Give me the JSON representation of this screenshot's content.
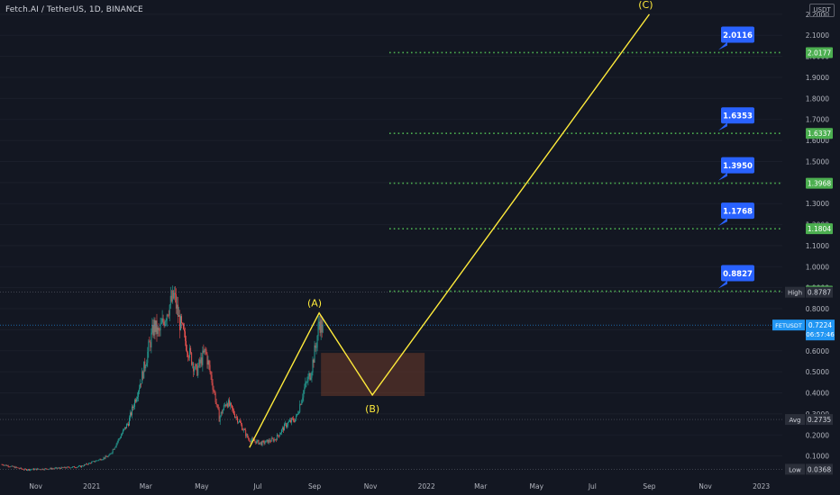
{
  "header": {
    "title": "Fetch.AI / TetherUS, 1D, BINANCE",
    "currency_label": "USDT"
  },
  "colors": {
    "background": "#131722",
    "up_candle": "#26a69a",
    "down_candle": "#ef5350",
    "wave_line": "#ffeb3b",
    "target_line": "#4caf50",
    "target_callout": "#2962ff",
    "price_label": "#2196f3",
    "zone_fill": "#6d3b2a"
  },
  "chart_data": {
    "type": "candlestick",
    "symbol": "FETUSDT",
    "exchange": "BINANCE",
    "interval": "1D",
    "y_axis": {
      "scale": "linear",
      "range": [
        0.0,
        2.25
      ],
      "ticks": [
        "0.1000",
        "0.2000",
        "0.3000",
        "0.4000",
        "0.5000",
        "0.6000",
        "0.7000",
        "0.8000",
        "0.9000",
        "1.0000",
        "1.1000",
        "1.2000",
        "1.3000",
        "1.4000",
        "1.5000",
        "1.6000",
        "1.7000",
        "1.8000",
        "1.9000",
        "2.0000",
        "2.1000",
        "2.2000"
      ],
      "tick_values": [
        0.1,
        0.2,
        0.3,
        0.4,
        0.5,
        0.6,
        0.7,
        0.8,
        0.9,
        1.0,
        1.1,
        1.2,
        1.3,
        1.4,
        1.5,
        1.6,
        1.7,
        1.8,
        1.9,
        2.0,
        2.1,
        2.2
      ]
    },
    "x_axis": {
      "range": [
        "2020-09-25",
        "2023-01-22"
      ],
      "ticks": [
        {
          "label": "Nov",
          "date": "2020-11-01"
        },
        {
          "label": "2021",
          "date": "2021-01-01"
        },
        {
          "label": "Mar",
          "date": "2021-03-01"
        },
        {
          "label": "May",
          "date": "2021-05-01"
        },
        {
          "label": "Jul",
          "date": "2021-07-01"
        },
        {
          "label": "Sep",
          "date": "2021-09-01"
        },
        {
          "label": "Nov",
          "date": "2021-11-01"
        },
        {
          "label": "2022",
          "date": "2022-01-01"
        },
        {
          "label": "Mar",
          "date": "2022-03-01"
        },
        {
          "label": "May",
          "date": "2022-05-01"
        },
        {
          "label": "Jul",
          "date": "2022-07-01"
        },
        {
          "label": "Sep",
          "date": "2022-09-01"
        },
        {
          "label": "Nov",
          "date": "2022-11-01"
        },
        {
          "label": "2023",
          "date": "2023-01-01"
        }
      ]
    },
    "price_path": [
      {
        "date": "2020-09-25",
        "price": 0.06
      },
      {
        "date": "2020-10-20",
        "price": 0.035
      },
      {
        "date": "2020-11-20",
        "price": 0.04
      },
      {
        "date": "2020-12-20",
        "price": 0.05
      },
      {
        "date": "2021-01-20",
        "price": 0.1
      },
      {
        "date": "2021-02-10",
        "price": 0.26
      },
      {
        "date": "2021-02-25",
        "price": 0.48
      },
      {
        "date": "2021-03-10",
        "price": 0.72
      },
      {
        "date": "2021-03-15",
        "price": 0.68
      },
      {
        "date": "2021-03-25",
        "price": 0.8
      },
      {
        "date": "2021-04-01",
        "price": 0.86
      },
      {
        "date": "2021-04-06",
        "price": 0.75
      },
      {
        "date": "2021-04-15",
        "price": 0.62
      },
      {
        "date": "2021-04-25",
        "price": 0.5
      },
      {
        "date": "2021-05-05",
        "price": 0.6
      },
      {
        "date": "2021-05-12",
        "price": 0.46
      },
      {
        "date": "2021-05-20",
        "price": 0.28
      },
      {
        "date": "2021-05-28",
        "price": 0.36
      },
      {
        "date": "2021-06-10",
        "price": 0.27
      },
      {
        "date": "2021-06-21",
        "price": 0.18
      },
      {
        "date": "2021-07-05",
        "price": 0.16
      },
      {
        "date": "2021-07-20",
        "price": 0.18
      },
      {
        "date": "2021-08-01",
        "price": 0.25
      },
      {
        "date": "2021-08-12",
        "price": 0.28
      },
      {
        "date": "2021-08-20",
        "price": 0.41
      },
      {
        "date": "2021-08-28",
        "price": 0.5
      },
      {
        "date": "2021-09-03",
        "price": 0.64
      },
      {
        "date": "2021-09-06",
        "price": 0.74
      },
      {
        "date": "2021-09-10",
        "price": 0.7
      }
    ],
    "horizontal_levels": [
      {
        "price": 2.0177,
        "label": "2.0177",
        "color": "#4caf50"
      },
      {
        "price": 1.6337,
        "label": "1.6337",
        "color": "#4caf50"
      },
      {
        "price": 1.3968,
        "label": "1.3968",
        "color": "#4caf50"
      },
      {
        "price": 1.1804,
        "label": "1.1804",
        "color": "#4caf50"
      },
      {
        "price": 0.8835,
        "label": "0.8835",
        "color": "#4caf50"
      }
    ],
    "callouts": [
      {
        "price": 2.0177,
        "text": "2.0116"
      },
      {
        "price": 1.6337,
        "text": "1.6353"
      },
      {
        "price": 1.3968,
        "text": "1.3950"
      },
      {
        "price": 1.1804,
        "text": "1.1768"
      },
      {
        "price": 0.8835,
        "text": "0.8827"
      }
    ],
    "markers": [
      {
        "name": "High",
        "value": "0.8787",
        "price": 0.8787
      },
      {
        "name": "Avg",
        "value": "0.2735",
        "price": 0.2735
      },
      {
        "name": "Low",
        "value": "0.0368",
        "price": 0.0368
      }
    ],
    "current": {
      "symbol": "FETUSDT",
      "price": "0.7224",
      "countdown": "06:57:46",
      "price_value": 0.7224
    },
    "wave": {
      "points": [
        {
          "date": "2021-06-22",
          "price": 0.14
        },
        {
          "date": "2021-09-06",
          "price": 0.78
        },
        {
          "date": "2021-11-03",
          "price": 0.39
        },
        {
          "date": "2022-09-01",
          "price": 2.2
        }
      ],
      "labels": [
        {
          "text": "(A)",
          "date": "2021-09-01",
          "price": 0.78,
          "position": "above"
        },
        {
          "text": "(B)",
          "date": "2021-11-03",
          "price": 0.39,
          "position": "below"
        },
        {
          "text": "(C)",
          "date": "2022-08-28",
          "price": 2.2,
          "position": "above"
        }
      ]
    },
    "zone": {
      "date_from": "2021-09-08",
      "date_to": "2021-12-30",
      "price_from": 0.385,
      "price_to": 0.59
    }
  }
}
